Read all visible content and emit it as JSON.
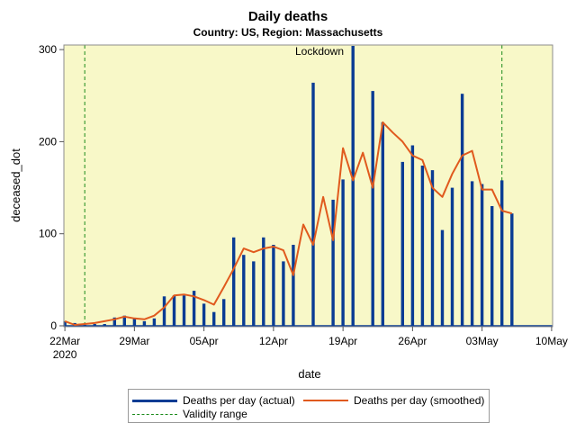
{
  "title": "Daily deaths",
  "subtitle": "Country: US, Region: Massachusetts",
  "annotation": "Lockdown",
  "colors": {
    "plot_bg": "#f8f8c8",
    "bars": "#0a3c94",
    "smoothed": "#e05a1e",
    "validity": "#1a8a1a"
  },
  "chart_data": {
    "type": "bar",
    "title": "Daily deaths",
    "subtitle": "Country: US, Region: Massachusetts",
    "xlabel": "date",
    "ylabel": "deceased_dot",
    "x_ticks": [
      "22Mar\n2020",
      "29Mar",
      "05Apr",
      "12Apr",
      "19Apr",
      "26Apr",
      "03May",
      "10May"
    ],
    "y_ticks": [
      "0",
      "100",
      "200",
      "300"
    ],
    "xlim": [
      "2020-03-22",
      "2020-05-10"
    ],
    "ylim": [
      0,
      305
    ],
    "grid": false,
    "legend_position": "bottom",
    "series": [
      {
        "name": "Deaths per day (actual)",
        "type": "bar",
        "x": [
          "2020-03-22",
          "2020-03-23",
          "2020-03-24",
          "2020-03-25",
          "2020-03-26",
          "2020-03-27",
          "2020-03-28",
          "2020-03-29",
          "2020-03-30",
          "2020-03-31",
          "2020-04-01",
          "2020-04-02",
          "2020-04-03",
          "2020-04-04",
          "2020-04-05",
          "2020-04-06",
          "2020-04-07",
          "2020-04-08",
          "2020-04-09",
          "2020-04-10",
          "2020-04-11",
          "2020-04-12",
          "2020-04-13",
          "2020-04-14",
          "2020-04-15",
          "2020-04-16",
          "2020-04-17",
          "2020-04-18",
          "2020-04-19",
          "2020-04-20",
          "2020-04-21",
          "2020-04-22",
          "2020-04-23",
          "2020-04-24",
          "2020-04-25",
          "2020-04-26",
          "2020-04-27",
          "2020-04-28",
          "2020-04-29",
          "2020-04-30",
          "2020-05-01",
          "2020-05-02",
          "2020-05-03",
          "2020-05-04",
          "2020-05-05",
          "2020-05-06"
        ],
        "values": [
          5,
          3,
          1,
          2,
          2,
          9,
          11,
          8,
          5,
          8,
          32,
          33,
          33,
          38,
          24,
          15,
          29,
          96,
          77,
          70,
          96,
          88,
          70,
          88,
          0,
          264,
          0,
          137,
          159,
          304,
          0,
          255,
          221,
          0,
          178,
          196,
          174,
          169,
          104,
          150,
          252,
          157,
          154,
          130,
          158,
          122
        ]
      },
      {
        "name": "Deaths per day (smoothed)",
        "type": "line",
        "x": [
          "2020-03-22",
          "2020-03-23",
          "2020-03-24",
          "2020-03-25",
          "2020-03-26",
          "2020-03-27",
          "2020-03-28",
          "2020-03-29",
          "2020-03-30",
          "2020-03-31",
          "2020-04-01",
          "2020-04-02",
          "2020-04-03",
          "2020-04-04",
          "2020-04-05",
          "2020-04-06",
          "2020-04-07",
          "2020-04-08",
          "2020-04-09",
          "2020-04-10",
          "2020-04-11",
          "2020-04-12",
          "2020-04-13",
          "2020-04-14",
          "2020-04-15",
          "2020-04-16",
          "2020-04-17",
          "2020-04-18",
          "2020-04-19",
          "2020-04-20",
          "2020-04-21",
          "2020-04-22",
          "2020-04-23",
          "2020-04-24",
          "2020-04-25",
          "2020-04-26",
          "2020-04-27",
          "2020-04-28",
          "2020-04-29",
          "2020-04-30",
          "2020-05-01",
          "2020-05-02",
          "2020-05-03",
          "2020-05-04",
          "2020-05-05",
          "2020-05-06"
        ],
        "values": [
          5,
          1,
          2,
          3,
          5,
          7,
          10,
          8,
          7,
          11,
          20,
          33,
          34,
          32,
          28,
          23,
          42,
          62,
          84,
          80,
          84,
          86,
          82,
          55,
          110,
          88,
          140,
          93,
          193,
          158,
          188,
          150,
          221,
          210,
          200,
          185,
          180,
          150,
          140,
          165,
          185,
          190,
          148,
          148,
          125,
          122
        ]
      }
    ],
    "validity_range": [
      "2020-03-24",
      "2020-05-05"
    ],
    "annotations": [
      {
        "label": "Lockdown",
        "x": "2020-04-19",
        "y": 300
      }
    ]
  },
  "legend": {
    "actual": "Deaths per day (actual)",
    "smoothed": "Deaths per day (smoothed)",
    "validity": "Validity range"
  }
}
